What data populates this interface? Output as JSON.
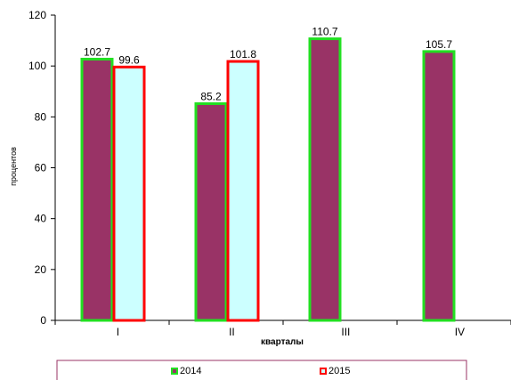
{
  "chart_data": {
    "type": "bar",
    "categories": [
      "I",
      "II",
      "III",
      "IV"
    ],
    "series": [
      {
        "name": "2014",
        "values": [
          102.7,
          85.2,
          110.7,
          105.7
        ],
        "fill": "#993366",
        "stroke": "#22e022"
      },
      {
        "name": "2015",
        "values": [
          99.6,
          101.8,
          null,
          null
        ],
        "fill": "#ccffff",
        "stroke": "#ff0000"
      }
    ],
    "xlabel": "кварталы",
    "ylabel": "процентов",
    "ylim": [
      0,
      120
    ],
    "yticks": [
      "0",
      "20",
      "40",
      "60",
      "80",
      "100",
      "120"
    ],
    "legend_position": "bottom",
    "grid": false
  }
}
